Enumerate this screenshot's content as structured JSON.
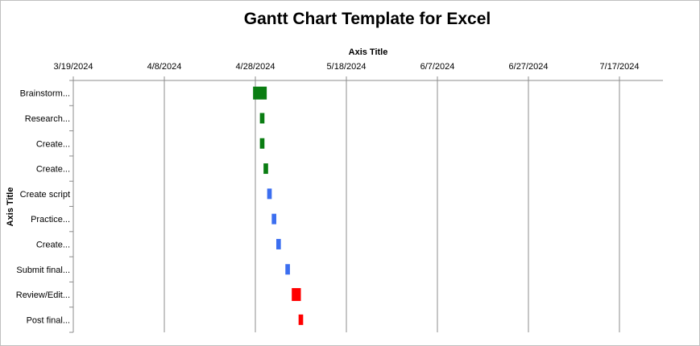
{
  "chart_data": {
    "type": "bar",
    "subtype": "gantt",
    "title": "Gantt Chart Template for Excel",
    "xlabel": "Axis Title",
    "ylabel": "Axis Title",
    "x_axis_position": "top",
    "x_tick_labels": [
      "3/19/2024",
      "4/8/2024",
      "4/28/2024",
      "5/18/2024",
      "6/7/2024",
      "6/27/2024",
      "7/17/2024"
    ],
    "x_tick_days": [
      0,
      20,
      40,
      60,
      80,
      100,
      120
    ],
    "xlim_days": [
      0,
      130
    ],
    "grid": true,
    "legend": "none",
    "categories": [
      "Brainstorm...",
      "Research...",
      "Create...",
      "Create...",
      "Create script",
      "Practice...",
      "Create...",
      "Submit final...",
      "Review/Edit...",
      "Post final..."
    ],
    "series": [
      {
        "start_days": [
          39.5,
          41.0,
          41.0,
          41.8,
          42.6,
          43.6,
          44.6,
          46.6,
          48.0,
          49.5
        ],
        "duration_days": [
          3.0,
          1.0,
          1.0,
          1.0,
          1.0,
          1.0,
          1.0,
          1.0,
          2.0,
          1.0
        ],
        "colors": [
          "#0a7d12",
          "#0a7d12",
          "#0a7d12",
          "#0a7d12",
          "#3b6ef0",
          "#3b6ef0",
          "#3b6ef0",
          "#3b6ef0",
          "#ff0000",
          "#ff0000"
        ],
        "thick": [
          true,
          false,
          false,
          false,
          false,
          false,
          false,
          false,
          true,
          false
        ]
      }
    ]
  }
}
